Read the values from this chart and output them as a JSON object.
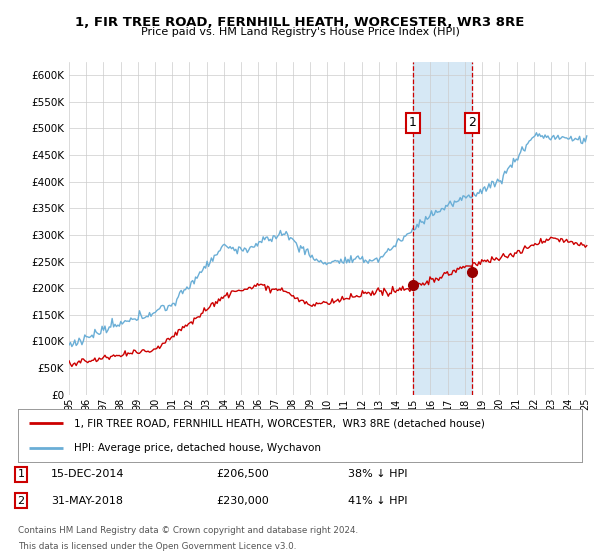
{
  "title1": "1, FIR TREE ROAD, FERNHILL HEATH, WORCESTER, WR3 8RE",
  "title2": "Price paid vs. HM Land Registry's House Price Index (HPI)",
  "ylabel_vals": [
    0,
    50000,
    100000,
    150000,
    200000,
    250000,
    300000,
    350000,
    400000,
    450000,
    500000,
    550000,
    600000
  ],
  "ylim": [
    0,
    625000
  ],
  "xlim_start": 1995.0,
  "xlim_end": 2025.5,
  "sale1_x": 2014.96,
  "sale1_y": 206500,
  "sale2_x": 2018.42,
  "sale2_y": 230000,
  "sale1_label": "15-DEC-2014",
  "sale1_price": "£206,500",
  "sale1_hpi": "38% ↓ HPI",
  "sale2_label": "31-MAY-2018",
  "sale2_price": "£230,000",
  "sale2_hpi": "41% ↓ HPI",
  "legend1_text": "1, FIR TREE ROAD, FERNHILL HEATH, WORCESTER,  WR3 8RE (detached house)",
  "legend2_text": "HPI: Average price, detached house, Wychavon",
  "footer1": "Contains HM Land Registry data © Crown copyright and database right 2024.",
  "footer2": "This data is licensed under the Open Government Licence v3.0.",
  "hpi_color": "#6aaed6",
  "sale_color": "#cc0000",
  "shade_color": "#d6e8f5",
  "bg_color": "#ffffff",
  "grid_color": "#cccccc"
}
